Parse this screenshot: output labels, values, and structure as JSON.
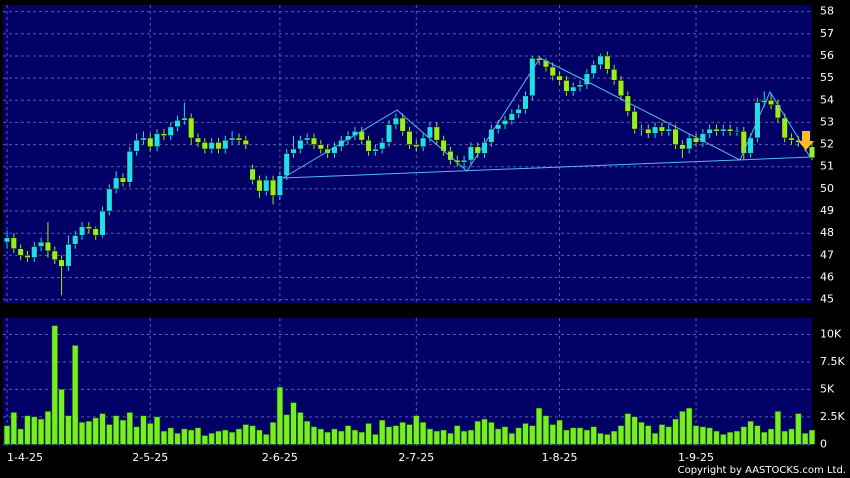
{
  "chart_data": [
    {
      "type": "candlestick",
      "up_color": "#22ddee",
      "down_color": "#99ee22",
      "ylim": [
        44.85,
        58.3
      ],
      "yticks": [
        45,
        46,
        47,
        48,
        49,
        50,
        51,
        52,
        53,
        54,
        55,
        56,
        57,
        58
      ],
      "grid": true,
      "open": [
        47.6,
        47.8,
        47.3,
        47.0,
        46.9,
        47.4,
        47.6,
        47.2,
        46.8,
        46.5,
        47.5,
        47.9,
        48.3,
        48.2,
        47.9,
        49.0,
        50.0,
        50.5,
        50.3,
        51.7,
        52.2,
        52.3,
        51.9,
        52.5,
        52.4,
        52.8,
        53.1,
        53.2,
        52.3,
        52.1,
        51.8,
        52.1,
        51.8,
        52.2,
        52.3,
        52.2,
        50.9,
        50.4,
        49.9,
        50.4,
        49.7,
        50.6,
        51.6,
        51.8,
        52.2,
        52.3,
        52.0,
        51.8,
        51.6,
        51.9,
        52.2,
        52.4,
        52.6,
        52.2,
        51.7,
        51.8,
        52.1,
        52.9,
        53.2,
        52.6,
        52.0,
        51.9,
        52.3,
        52.8,
        52.2,
        51.7,
        51.3,
        51.2,
        51.3,
        51.9,
        51.6,
        52.1,
        52.7,
        52.9,
        53.1,
        53.4,
        53.6,
        54.2,
        55.9,
        55.8,
        55.5,
        55.1,
        54.9,
        54.4,
        54.6,
        54.7,
        55.2,
        55.6,
        56.0,
        55.4,
        54.9,
        54.2,
        53.5,
        52.7,
        52.7,
        52.5,
        52.8,
        52.6,
        52.7,
        52.0,
        51.8,
        52.3,
        52.1,
        52.5,
        52.7,
        52.6,
        52.7,
        52.6,
        52.6,
        51.6,
        52.3,
        53.9,
        54.0,
        53.8,
        53.2,
        52.3,
        52.2,
        52.1,
        51.9
      ],
      "high": [
        48.1,
        48.0,
        47.5,
        47.2,
        47.6,
        47.8,
        48.5,
        47.4,
        47.0,
        47.9,
        48.1,
        48.5,
        48.5,
        48.3,
        49.2,
        50.2,
        50.8,
        50.7,
        51.9,
        52.5,
        52.6,
        52.5,
        52.7,
        52.7,
        53.0,
        53.3,
        53.9,
        53.4,
        52.5,
        52.3,
        52.3,
        52.3,
        52.4,
        52.6,
        52.5,
        52.4,
        51.1,
        50.6,
        50.6,
        50.6,
        50.8,
        51.8,
        52.4,
        52.4,
        52.5,
        52.5,
        52.2,
        52.0,
        52.1,
        52.4,
        52.6,
        52.8,
        52.8,
        52.4,
        52.0,
        52.3,
        53.1,
        53.4,
        53.4,
        52.8,
        52.2,
        52.5,
        53.0,
        53.0,
        52.4,
        51.9,
        51.5,
        51.5,
        52.1,
        52.1,
        52.3,
        52.9,
        53.1,
        53.3,
        53.6,
        53.8,
        54.4,
        56.0,
        56.0,
        55.9,
        55.7,
        55.3,
        55.1,
        54.8,
        54.9,
        55.4,
        55.8,
        56.1,
        56.2,
        55.6,
        55.1,
        54.4,
        53.7,
        52.9,
        52.9,
        53.0,
        53.0,
        52.9,
        52.9,
        52.2,
        52.5,
        52.5,
        52.7,
        52.9,
        52.9,
        52.9,
        52.9,
        52.8,
        52.8,
        52.5,
        54.1,
        54.4,
        54.3,
        54.0,
        53.4,
        52.5,
        52.4,
        52.3,
        52.1
      ],
      "low": [
        47.3,
        47.1,
        46.8,
        46.7,
        46.7,
        47.2,
        46.9,
        46.6,
        45.2,
        46.3,
        47.3,
        47.7,
        48.0,
        47.7,
        47.8,
        48.8,
        49.8,
        50.1,
        50.1,
        51.5,
        52.0,
        51.7,
        51.7,
        52.2,
        52.2,
        52.6,
        52.9,
        52.0,
        51.9,
        51.6,
        51.6,
        51.6,
        51.6,
        52.0,
        52.0,
        51.8,
        50.2,
        49.6,
        49.7,
        49.3,
        49.5,
        50.4,
        51.4,
        51.6,
        52.0,
        51.8,
        51.6,
        51.4,
        51.4,
        51.7,
        52.0,
        52.2,
        52.0,
        51.5,
        51.5,
        51.6,
        51.9,
        52.7,
        52.4,
        51.8,
        51.7,
        51.7,
        52.1,
        52.0,
        51.5,
        51.1,
        51.0,
        50.9,
        51.1,
        51.4,
        51.4,
        51.9,
        52.5,
        52.7,
        52.9,
        53.2,
        53.4,
        54.0,
        55.6,
        55.3,
        54.9,
        54.7,
        54.2,
        54.2,
        54.4,
        54.5,
        55.0,
        55.4,
        55.2,
        54.7,
        54.0,
        53.3,
        52.5,
        52.4,
        52.3,
        52.3,
        52.4,
        52.4,
        51.8,
        51.4,
        51.6,
        51.9,
        51.9,
        52.3,
        52.4,
        52.4,
        52.4,
        52.4,
        51.3,
        51.4,
        52.1,
        53.7,
        53.6,
        53.0,
        52.1,
        52.0,
        51.9,
        51.7,
        51.3
      ],
      "close": [
        47.8,
        47.3,
        47.0,
        46.9,
        47.4,
        47.6,
        47.2,
        46.8,
        46.5,
        47.5,
        47.9,
        48.3,
        48.2,
        47.9,
        49.0,
        50.0,
        50.5,
        50.3,
        51.7,
        52.2,
        52.3,
        51.9,
        52.5,
        52.4,
        52.8,
        53.1,
        53.2,
        52.3,
        52.1,
        51.8,
        52.1,
        51.8,
        52.2,
        52.3,
        52.2,
        52.0,
        50.4,
        49.9,
        50.4,
        49.7,
        50.6,
        51.6,
        51.8,
        52.2,
        52.3,
        52.0,
        51.8,
        51.6,
        51.9,
        52.2,
        52.4,
        52.6,
        52.2,
        51.7,
        51.8,
        52.1,
        52.9,
        53.2,
        52.6,
        52.0,
        51.9,
        52.3,
        52.8,
        52.2,
        51.7,
        51.3,
        51.2,
        51.3,
        51.9,
        51.6,
        52.1,
        52.7,
        52.9,
        53.1,
        53.4,
        53.6,
        54.2,
        55.9,
        55.8,
        55.5,
        55.1,
        54.9,
        54.4,
        54.6,
        54.7,
        55.2,
        55.6,
        56.0,
        55.4,
        54.9,
        54.2,
        53.5,
        52.7,
        52.7,
        52.5,
        52.8,
        52.6,
        52.7,
        52.0,
        51.8,
        52.3,
        52.1,
        52.5,
        52.7,
        52.6,
        52.7,
        52.6,
        52.6,
        51.6,
        52.3,
        53.9,
        54.0,
        53.8,
        53.2,
        52.3,
        52.2,
        52.1,
        51.9,
        51.4
      ]
    },
    {
      "type": "bar",
      "color": "#77ee22",
      "ylim": [
        -150,
        11500
      ],
      "yticks": [
        0,
        {
          "value": 2500,
          "label": "2.5K"
        },
        {
          "value": 5000,
          "label": "5K"
        },
        {
          "value": 7500,
          "label": "7.5K"
        },
        {
          "value": 10000,
          "label": "10K"
        }
      ],
      "grid": true,
      "categories": [
        "1-4-25",
        null,
        null,
        null,
        null,
        null,
        null,
        null,
        null,
        null,
        null,
        null,
        null,
        null,
        null,
        null,
        null,
        null,
        null,
        null,
        null,
        "2-5-25",
        null,
        null,
        null,
        null,
        null,
        null,
        null,
        null,
        null,
        null,
        null,
        null,
        null,
        null,
        null,
        null,
        null,
        null,
        "2-6-25",
        null,
        null,
        null,
        null,
        null,
        null,
        null,
        null,
        null,
        null,
        null,
        null,
        null,
        null,
        null,
        null,
        null,
        null,
        null,
        "2-7-25",
        null,
        null,
        null,
        null,
        null,
        null,
        null,
        null,
        null,
        null,
        null,
        null,
        null,
        null,
        null,
        null,
        null,
        null,
        null,
        null,
        "1-8-25",
        null,
        null,
        null,
        null,
        null,
        null,
        null,
        null,
        null,
        null,
        null,
        null,
        null,
        null,
        null,
        null,
        null,
        null,
        null,
        "1-9-25",
        null,
        null,
        null,
        null,
        null,
        null,
        null,
        null,
        null,
        null,
        null,
        null,
        null,
        null,
        null,
        null,
        null
      ],
      "values": [
        1700,
        2900,
        1400,
        2600,
        2500,
        2300,
        3000,
        10800,
        5000,
        2600,
        9000,
        2000,
        2100,
        2400,
        2800,
        1800,
        2600,
        2200,
        2900,
        1600,
        2600,
        1900,
        2500,
        1200,
        1500,
        1000,
        1400,
        1300,
        1500,
        800,
        1000,
        1200,
        1300,
        1100,
        1400,
        1800,
        1700,
        1300,
        900,
        2000,
        5200,
        2700,
        3800,
        2900,
        2100,
        1600,
        1400,
        1100,
        1400,
        1200,
        1700,
        1300,
        1100,
        1900,
        900,
        2200,
        1600,
        1700,
        2000,
        1800,
        2600,
        2000,
        1400,
        1200,
        1300,
        1000,
        1700,
        1200,
        1300,
        2100,
        2300,
        2000,
        1400,
        1600,
        1000,
        1500,
        1900,
        1700,
        3300,
        2600,
        1800,
        2200,
        1300,
        1500,
        1500,
        1300,
        1600,
        1000,
        900,
        1200,
        1700,
        2800,
        2500,
        2000,
        1700,
        1000,
        1800,
        1600,
        2300,
        3000,
        3300,
        1700,
        1600,
        1500,
        1200,
        900,
        1100,
        1200,
        1600,
        2100,
        1700,
        1100,
        1400,
        3000,
        1200,
        1400,
        2800,
        1000,
        1300
      ],
      "annotation": "Copyright by AASTOCKS.com Ltd."
    }
  ]
}
